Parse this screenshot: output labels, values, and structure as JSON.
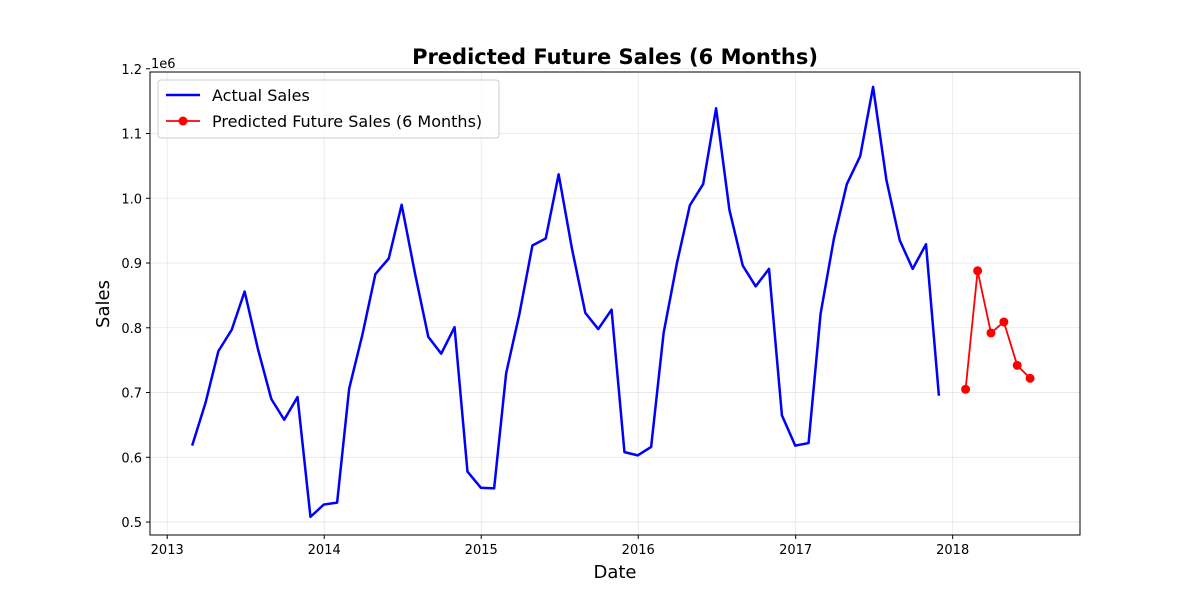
{
  "chart_data": {
    "type": "line",
    "title": "Predicted Future Sales (6 Months)",
    "xlabel": "Date",
    "ylabel": "Sales",
    "y_offset_label": "1e6",
    "xlim": [
      "2012-11-22",
      "2018-10-24"
    ],
    "ylim": [
      480000,
      1195000
    ],
    "x_tick_labels": [
      "2013",
      "2014",
      "2015",
      "2016",
      "2017",
      "2018"
    ],
    "x_ticks": [
      "2013-01-01",
      "2014-01-01",
      "2015-01-01",
      "2016-01-01",
      "2017-01-01",
      "2018-01-01"
    ],
    "y_tick_labels": [
      "0.5",
      "0.6",
      "0.7",
      "0.8",
      "0.9",
      "1.0",
      "1.1",
      "1.2"
    ],
    "y_ticks": [
      500000,
      600000,
      700000,
      800000,
      900000,
      1000000,
      1100000,
      1200000
    ],
    "grid": true,
    "legend_position": "top-left",
    "series": [
      {
        "name": "Actual Sales",
        "color": "#0000ff",
        "marker": "none",
        "x": [
          "2013-02-28",
          "2013-03-31",
          "2013-04-30",
          "2013-05-31",
          "2013-06-30",
          "2013-07-31",
          "2013-08-31",
          "2013-09-30",
          "2013-10-31",
          "2013-11-30",
          "2013-12-31",
          "2014-01-31",
          "2014-02-28",
          "2014-03-31",
          "2014-04-30",
          "2014-05-31",
          "2014-06-30",
          "2014-07-31",
          "2014-08-31",
          "2014-09-30",
          "2014-10-31",
          "2014-11-30",
          "2014-12-31",
          "2015-01-31",
          "2015-02-28",
          "2015-03-31",
          "2015-04-30",
          "2015-05-31",
          "2015-06-30",
          "2015-07-31",
          "2015-08-31",
          "2015-09-30",
          "2015-10-31",
          "2015-11-30",
          "2015-12-31",
          "2016-01-31",
          "2016-02-29",
          "2016-03-31",
          "2016-04-30",
          "2016-05-31",
          "2016-06-30",
          "2016-07-31",
          "2016-08-31",
          "2016-09-30",
          "2016-10-31",
          "2016-11-30",
          "2016-12-31",
          "2017-01-31",
          "2017-02-28",
          "2017-03-31",
          "2017-04-30",
          "2017-05-31",
          "2017-06-30",
          "2017-07-31",
          "2017-08-31",
          "2017-09-30",
          "2017-10-31",
          "2017-11-30"
        ],
        "values": [
          618000,
          684000,
          764000,
          797000,
          856000,
          767000,
          690000,
          658000,
          693000,
          508000,
          527000,
          530000,
          706000,
          790000,
          883000,
          907000,
          990000,
          884000,
          786000,
          760000,
          801000,
          578000,
          553000,
          552000,
          730000,
          822000,
          927000,
          938000,
          1037000,
          922000,
          823000,
          798000,
          828000,
          608000,
          603000,
          616000,
          792000,
          900000,
          989000,
          1022000,
          1139000,
          982000,
          896000,
          864000,
          891000,
          665000,
          618000,
          622000,
          822000,
          938000,
          1022000,
          1065000,
          1172000,
          1028000,
          935000,
          891000,
          929000,
          695000
        ]
      },
      {
        "name": "Predicted Future Sales (6 Months)",
        "color": "#ff0000",
        "marker": "circle",
        "x": [
          "2018-01-31",
          "2018-02-28",
          "2018-03-31",
          "2018-04-30",
          "2018-05-31",
          "2018-06-30"
        ],
        "values": [
          705000,
          888000,
          792000,
          809000,
          742000,
          722000
        ]
      }
    ]
  }
}
